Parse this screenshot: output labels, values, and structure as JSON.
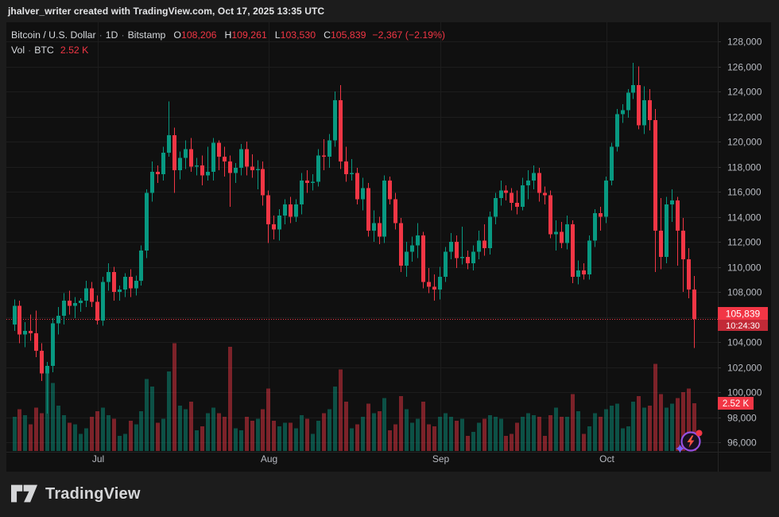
{
  "attribution": {
    "text": "jhalver_writer created with TradingView.com, Oct 17, 2025 13:35 UTC"
  },
  "legend": {
    "symbol": "Bitcoin / U.S. Dollar",
    "sep": "·",
    "interval": "1D",
    "exchange": "Bitstamp",
    "ohlc": [
      {
        "label": "O",
        "value": "108,206"
      },
      {
        "label": "H",
        "value": "109,261"
      },
      {
        "label": "L",
        "value": "103,530"
      },
      {
        "label": "C",
        "value": "105,839"
      }
    ],
    "change": "−2,367 (−2.19%)"
  },
  "volume_legend": {
    "label_vol": "Vol",
    "sep": "·",
    "label_unit": "BTC",
    "value": "2.52 K"
  },
  "price_scale": {
    "last_price_label": "105,839",
    "countdown": "10:24:30",
    "volume_label": "2.52 K"
  },
  "x_axis": {
    "labels": [
      "Jul",
      "Aug",
      "Sep",
      "Oct"
    ]
  },
  "logo": {
    "text": "TradingView"
  },
  "colors": {
    "up": "#089981",
    "down": "#f23645",
    "grid": "#1d1d1d",
    "axis_text": "#b7bac1",
    "separator": "#262626",
    "price_line": "#f23645",
    "label_box": "#f23645",
    "countdown_box": "#c22a37",
    "icon_purple": "#9550e0",
    "icon_star": "#7b61ff"
  },
  "chart_data": {
    "type": "candlestick",
    "title": "Bitcoin / U.S. Dollar",
    "interval": "1D",
    "exchange": "Bitstamp",
    "start_date": "2025-06-16",
    "units": "thousand_usd",
    "volume_unit": "K BTC",
    "ohlc_order": [
      "open",
      "high",
      "low",
      "close",
      "volume_kbtc"
    ],
    "y_axis": {
      "min": 96000,
      "max": 128000,
      "tick_step": 2000
    },
    "current": {
      "open": 108206,
      "high": 109261,
      "low": 103530,
      "close": 105839,
      "change": -2367,
      "change_pct": -2.19,
      "volume_kbtc": 2.52
    },
    "candles": [
      [
        105.4,
        107.4,
        104.9,
        106.9,
        1.8
      ],
      [
        106.9,
        107.3,
        103.9,
        104.6,
        2.2
      ],
      [
        104.6,
        105.6,
        103.6,
        104.9,
        1.9
      ],
      [
        104.9,
        106.2,
        104.1,
        104.7,
        1.4
      ],
      [
        104.7,
        106.5,
        102.8,
        103.3,
        2.3
      ],
      [
        103.3,
        103.9,
        100.9,
        101.5,
        2.0
      ],
      [
        101.5,
        102.4,
        98.3,
        102.1,
        4.1
      ],
      [
        102.1,
        105.9,
        101.6,
        105.5,
        3.6
      ],
      [
        105.5,
        106.8,
        104.6,
        106.1,
        2.4
      ],
      [
        106.1,
        107.9,
        105.4,
        107.3,
        1.9
      ],
      [
        107.3,
        108.1,
        106.2,
        106.9,
        1.5
      ],
      [
        106.9,
        107.6,
        105.9,
        107.1,
        1.4
      ],
      [
        107.1,
        107.5,
        106.4,
        107.3,
        0.9
      ],
      [
        107.3,
        108.9,
        106.8,
        108.3,
        1.2
      ],
      [
        108.3,
        108.8,
        106.8,
        107.2,
        1.8
      ],
      [
        107.2,
        107.7,
        105.4,
        105.7,
        2.1
      ],
      [
        105.7,
        109.2,
        105.3,
        108.8,
        2.3
      ],
      [
        108.8,
        110.3,
        108.1,
        109.6,
        1.9
      ],
      [
        109.6,
        110.0,
        107.3,
        108.0,
        1.7
      ],
      [
        108.0,
        108.5,
        107.3,
        108.2,
        0.8
      ],
      [
        108.2,
        109.5,
        107.6,
        109.2,
        0.9
      ],
      [
        109.2,
        109.8,
        107.6,
        108.3,
        1.6
      ],
      [
        108.3,
        109.3,
        107.7,
        108.9,
        1.4
      ],
      [
        108.9,
        111.7,
        108.5,
        111.3,
        2.1
      ],
      [
        111.3,
        116.2,
        110.7,
        115.9,
        3.8
      ],
      [
        115.9,
        118.4,
        115.2,
        117.6,
        3.4
      ],
      [
        117.6,
        118.1,
        116.7,
        117.4,
        1.5
      ],
      [
        117.4,
        119.6,
        116.9,
        119.1,
        1.7
      ],
      [
        119.1,
        123.2,
        118.8,
        120.5,
        4.2
      ],
      [
        120.5,
        121.1,
        115.9,
        117.7,
        5.7
      ],
      [
        117.7,
        119.2,
        117.0,
        118.7,
        2.4
      ],
      [
        118.7,
        120.1,
        117.8,
        119.4,
        2.2
      ],
      [
        119.4,
        120.3,
        117.6,
        118.0,
        2.6
      ],
      [
        118.0,
        118.7,
        117.3,
        118.1,
        1.1
      ],
      [
        118.1,
        118.9,
        116.5,
        117.3,
        1.3
      ],
      [
        117.3,
        119.6,
        116.9,
        117.6,
        2.0
      ],
      [
        117.6,
        120.3,
        116.9,
        119.9,
        2.3
      ],
      [
        119.9,
        120.1,
        117.7,
        118.8,
        2.0
      ],
      [
        118.8,
        119.6,
        117.2,
        118.4,
        1.8
      ],
      [
        118.4,
        118.9,
        114.8,
        117.5,
        5.5
      ],
      [
        117.5,
        118.3,
        116.7,
        117.9,
        1.2
      ],
      [
        117.9,
        119.8,
        117.3,
        119.4,
        1.1
      ],
      [
        119.4,
        120.0,
        117.3,
        118.0,
        1.8
      ],
      [
        118.0,
        119.0,
        117.1,
        117.7,
        1.6
      ],
      [
        117.7,
        118.5,
        116.2,
        117.8,
        1.7
      ],
      [
        117.8,
        118.4,
        114.9,
        115.7,
        2.2
      ],
      [
        115.7,
        116.1,
        111.9,
        113.4,
        3.3
      ],
      [
        113.4,
        114.1,
        112.2,
        113.0,
        1.6
      ],
      [
        113.0,
        114.6,
        112.1,
        114.1,
        1.3
      ],
      [
        114.1,
        115.4,
        113.4,
        115.0,
        1.5
      ],
      [
        115.0,
        115.6,
        113.5,
        114.0,
        1.5
      ],
      [
        114.0,
        115.4,
        113.6,
        115.0,
        1.2
      ],
      [
        115.0,
        117.5,
        114.2,
        116.9,
        1.9
      ],
      [
        116.9,
        117.7,
        115.9,
        116.7,
        1.7
      ],
      [
        116.7,
        117.4,
        116.1,
        116.8,
        0.9
      ],
      [
        116.8,
        119.4,
        116.4,
        118.9,
        1.6
      ],
      [
        118.9,
        120.2,
        117.7,
        118.8,
        2.0
      ],
      [
        118.8,
        120.6,
        117.9,
        120.1,
        2.2
      ],
      [
        120.1,
        124.0,
        119.6,
        123.3,
        3.4
      ],
      [
        123.3,
        124.5,
        117.8,
        118.4,
        4.3
      ],
      [
        118.4,
        119.6,
        116.8,
        117.4,
        2.6
      ],
      [
        117.4,
        118.6,
        116.9,
        117.5,
        1.2
      ],
      [
        117.5,
        117.9,
        115.0,
        115.4,
        1.4
      ],
      [
        115.4,
        117.1,
        114.5,
        116.3,
        1.8
      ],
      [
        116.3,
        116.7,
        112.4,
        112.9,
        2.5
      ],
      [
        112.9,
        114.5,
        112.0,
        113.5,
        2.0
      ],
      [
        113.5,
        114.0,
        111.8,
        112.4,
        2.1
      ],
      [
        112.4,
        117.3,
        111.9,
        116.9,
        2.8
      ],
      [
        116.9,
        117.2,
        115.0,
        115.4,
        1.1
      ],
      [
        115.4,
        115.9,
        113.0,
        113.5,
        1.4
      ],
      [
        113.5,
        113.9,
        109.6,
        110.1,
        2.9
      ],
      [
        110.1,
        112.0,
        109.2,
        111.2,
        2.2
      ],
      [
        111.2,
        112.4,
        110.4,
        111.7,
        1.5
      ],
      [
        111.7,
        113.5,
        110.7,
        112.5,
        1.7
      ],
      [
        112.5,
        112.8,
        108.3,
        108.8,
        2.6
      ],
      [
        108.8,
        109.9,
        107.9,
        108.4,
        1.4
      ],
      [
        108.4,
        109.4,
        107.3,
        108.2,
        1.3
      ],
      [
        108.2,
        110.0,
        107.4,
        109.2,
        1.8
      ],
      [
        109.2,
        111.6,
        108.8,
        111.2,
        2.0
      ],
      [
        111.2,
        112.7,
        110.6,
        112.0,
        1.8
      ],
      [
        112.0,
        112.5,
        109.9,
        110.7,
        1.6
      ],
      [
        110.7,
        113.2,
        110.2,
        110.8,
        1.7
      ],
      [
        110.8,
        111.3,
        109.8,
        110.3,
        0.8
      ],
      [
        110.3,
        111.7,
        109.7,
        111.2,
        1.0
      ],
      [
        111.2,
        112.9,
        110.6,
        112.1,
        1.5
      ],
      [
        112.1,
        113.4,
        110.9,
        111.5,
        1.7
      ],
      [
        111.5,
        114.4,
        111.0,
        114.0,
        1.9
      ],
      [
        114.0,
        115.9,
        113.4,
        115.5,
        1.8
      ],
      [
        115.5,
        116.9,
        114.9,
        116.1,
        1.7
      ],
      [
        116.1,
        116.5,
        115.3,
        115.9,
        0.8
      ],
      [
        115.9,
        116.3,
        114.5,
        115.1,
        0.9
      ],
      [
        115.1,
        116.1,
        114.2,
        114.8,
        1.5
      ],
      [
        114.8,
        117.1,
        114.5,
        116.5,
        1.8
      ],
      [
        116.5,
        117.7,
        115.4,
        116.9,
        2.0
      ],
      [
        116.9,
        118.1,
        116.2,
        117.5,
        1.9
      ],
      [
        117.5,
        117.9,
        115.2,
        115.9,
        1.8
      ],
      [
        115.9,
        116.4,
        115.0,
        115.7,
        0.8
      ],
      [
        115.7,
        116.1,
        112.3,
        112.6,
        1.9
      ],
      [
        112.6,
        113.7,
        111.3,
        112.8,
        2.3
      ],
      [
        112.8,
        113.6,
        111.5,
        111.9,
        1.8
      ],
      [
        111.9,
        114.1,
        111.4,
        113.4,
        1.8
      ],
      [
        113.4,
        113.7,
        108.7,
        109.2,
        3.0
      ],
      [
        109.2,
        110.5,
        108.6,
        109.7,
        2.1
      ],
      [
        109.7,
        110.3,
        109.0,
        109.4,
        0.9
      ],
      [
        109.4,
        112.5,
        109.0,
        112.1,
        1.3
      ],
      [
        112.1,
        114.6,
        111.6,
        114.3,
        2.0
      ],
      [
        114.3,
        114.8,
        112.9,
        114.0,
        1.8
      ],
      [
        114.0,
        117.2,
        113.5,
        116.9,
        2.2
      ],
      [
        116.9,
        119.9,
        116.5,
        119.6,
        2.4
      ],
      [
        119.6,
        122.6,
        119.2,
        122.2,
        2.5
      ],
      [
        122.2,
        123.0,
        121.5,
        122.5,
        1.2
      ],
      [
        122.5,
        124.2,
        121.9,
        123.9,
        1.3
      ],
      [
        123.9,
        126.3,
        123.4,
        124.5,
        2.6
      ],
      [
        124.5,
        126.0,
        121.0,
        121.3,
        2.9
      ],
      [
        121.3,
        124.4,
        120.6,
        123.3,
        2.3
      ],
      [
        123.3,
        124.2,
        120.9,
        121.7,
        2.4
      ],
      [
        121.7,
        122.6,
        109.6,
        112.9,
        4.6
      ],
      [
        112.9,
        115.5,
        109.8,
        110.8,
        3.0
      ],
      [
        110.8,
        115.6,
        110.3,
        115.0,
        2.3
      ],
      [
        115.0,
        116.2,
        113.6,
        115.3,
        2.5
      ],
      [
        115.3,
        115.6,
        110.1,
        112.9,
        2.8
      ],
      [
        112.9,
        113.9,
        108.0,
        110.6,
        3.1
      ],
      [
        110.6,
        111.5,
        107.5,
        108.206,
        3.3
      ],
      [
        108.206,
        109.261,
        103.53,
        105.839,
        2.52
      ]
    ]
  }
}
